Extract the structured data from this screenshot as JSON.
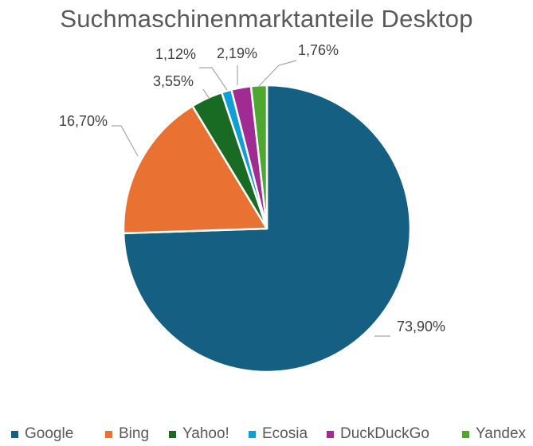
{
  "chart_data": {
    "type": "pie",
    "title": "Suchmaschinenmarktanteile Desktop",
    "categories": [
      "Google",
      "Bing",
      "Yahoo!",
      "Ecosia",
      "DuckDuckGo",
      "Yandex"
    ],
    "values": [
      73.9,
      16.7,
      3.55,
      1.12,
      2.19,
      1.76
    ],
    "labels": [
      "73,90%",
      "16,70%",
      "3,55%",
      "1,12%",
      "2,19%",
      "1,76%"
    ],
    "colors": [
      "#156082",
      "#E97132",
      "#196B24",
      "#0F9ED5",
      "#A02B93",
      "#4EA72E"
    ],
    "legend": "bottom"
  }
}
